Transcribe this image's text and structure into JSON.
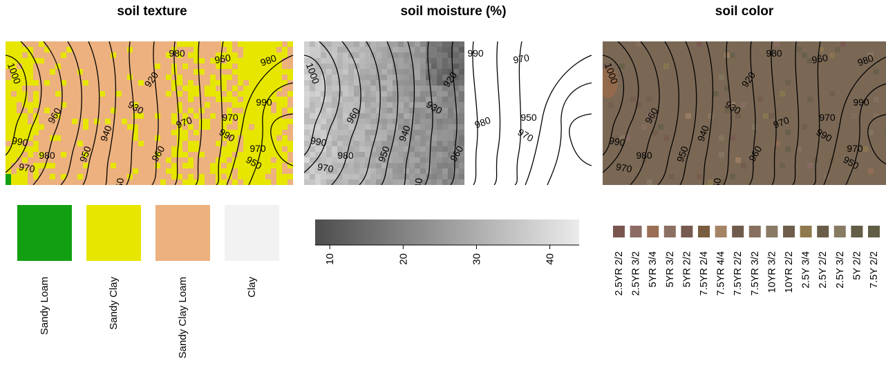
{
  "chart_data": [
    {
      "type": "heatmap",
      "title": "soil texture",
      "legend_type": "categorical",
      "categories": [
        {
          "label": "Sandy Loam",
          "color": "#12a012"
        },
        {
          "label": "Sandy Clay",
          "color": "#e6e600"
        },
        {
          "label": "Sandy Clay Loam",
          "color": "#ecb17e"
        },
        {
          "label": "Clay",
          "color": "#f2f2f2"
        }
      ],
      "contour_labels": [
        "1000",
        "990",
        "980",
        "970",
        "960",
        "950",
        "940",
        "930",
        "920",
        "950",
        "960",
        "970",
        "980",
        "990",
        "970",
        "960",
        "950",
        "980",
        "990",
        "970"
      ]
    },
    {
      "type": "heatmap",
      "title": "soil moisture (%)",
      "legend_type": "continuous",
      "colorbar": {
        "min": 8,
        "max": 44,
        "ticks": [
          10,
          20,
          30,
          40
        ],
        "low_color": "#4d4d4d",
        "high_color": "#ebebeb"
      },
      "contour_labels": [
        "1000",
        "990",
        "980",
        "970",
        "960",
        "950",
        "940",
        "930",
        "920",
        "940",
        "960",
        "980",
        "990",
        "970",
        "950",
        "970"
      ]
    },
    {
      "type": "heatmap",
      "title": "soil color",
      "legend_type": "categorical",
      "categories": [
        {
          "label": "2.5YR 2/2",
          "color": "#7a5650"
        },
        {
          "label": "2.5YR 3/2",
          "color": "#8d6c66"
        },
        {
          "label": "5YR 3/4",
          "color": "#9a6f55"
        },
        {
          "label": "5YR 3/2",
          "color": "#8c7062"
        },
        {
          "label": "5YR 2/2",
          "color": "#76594f"
        },
        {
          "label": "7.5YR 2/4",
          "color": "#7a5c40"
        },
        {
          "label": "7.5YR 4/4",
          "color": "#a58466"
        },
        {
          "label": "7.5YR 2/2",
          "color": "#705a4b"
        },
        {
          "label": "7.5YR 3/2",
          "color": "#87705f"
        },
        {
          "label": "10YR 3/2",
          "color": "#8a7a65"
        },
        {
          "label": "10YR 2/2",
          "color": "#6f5e4c"
        },
        {
          "label": "2.5Y 3/4",
          "color": "#8f7a4f"
        },
        {
          "label": "2.5Y 2/2",
          "color": "#6a5e48"
        },
        {
          "label": "2.5Y 3/2",
          "color": "#887b63"
        },
        {
          "label": "5Y 2/2",
          "color": "#645d47"
        },
        {
          "label": "7.5Y 2/2",
          "color": "#5f5e45"
        }
      ],
      "contour_labels": [
        "1000",
        "990",
        "980",
        "970",
        "960",
        "950",
        "940",
        "930",
        "920",
        "950",
        "960",
        "970",
        "980",
        "990",
        "970",
        "960",
        "950",
        "980",
        "990",
        "970"
      ]
    }
  ]
}
